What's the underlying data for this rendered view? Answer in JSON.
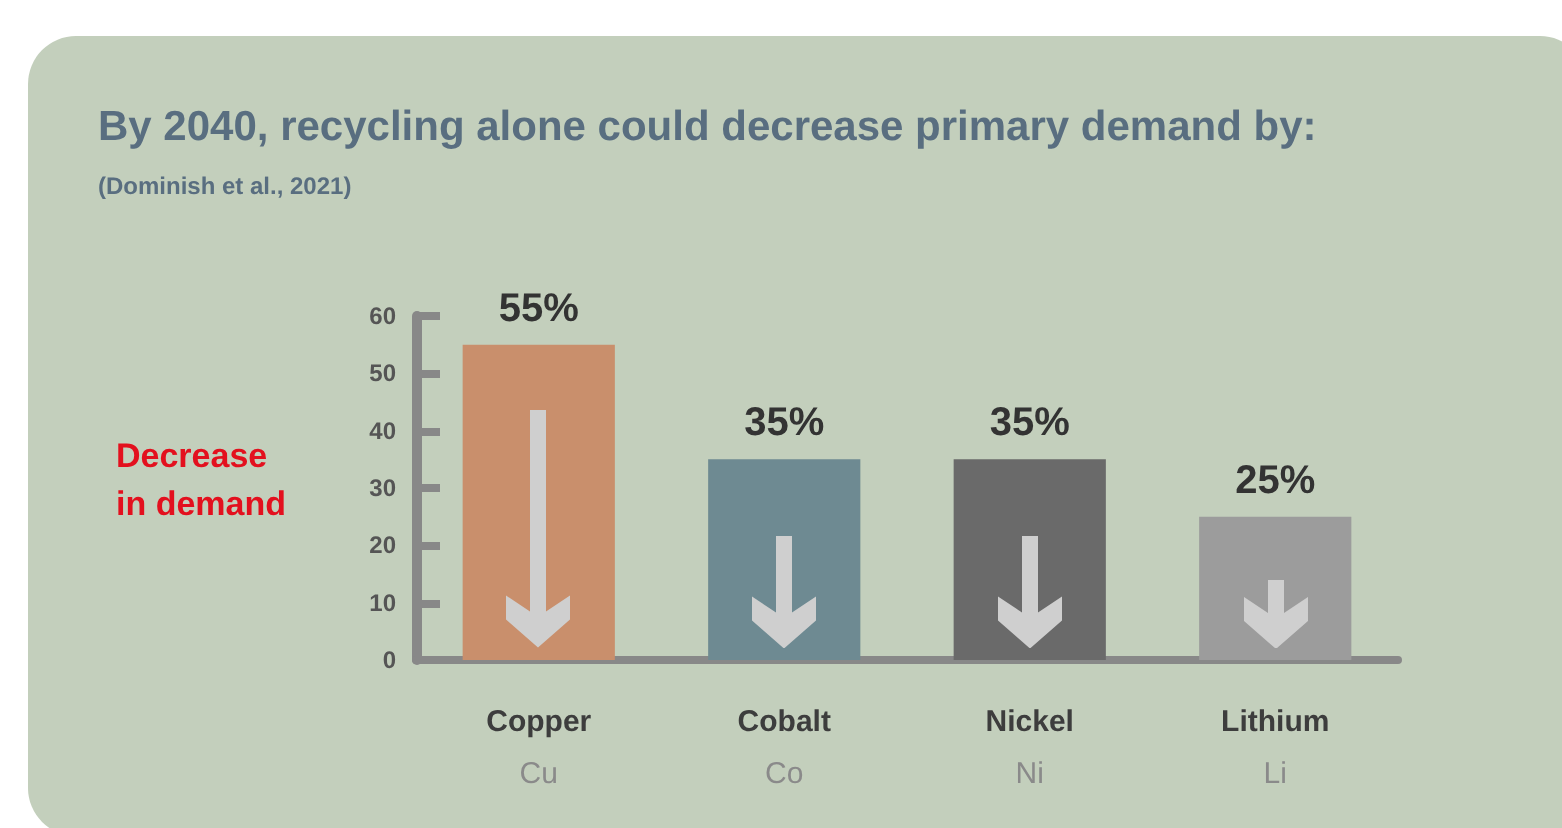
{
  "chart_data": {
    "type": "bar",
    "title": "By 2040, recycling alone could decrease primary demand by:",
    "subtitle": "(Dominish et al., 2021)",
    "ylabel": "Decrease in demand",
    "categories": [
      "Copper\nCu",
      "Cobalt\nCo",
      "Nickel\nNi",
      "Lithium\nLi"
    ],
    "values": [
      55,
      35,
      35,
      25
    ],
    "colors": [
      "#c98f6c",
      "#6e8a92",
      "#6a6a6a",
      "#9c9c9c"
    ],
    "value_labels": [
      "55%",
      "35%",
      "35%",
      "25%"
    ],
    "ylim": [
      0,
      60
    ],
    "yticks": [
      0,
      10,
      20,
      30,
      40,
      50,
      60
    ],
    "grid": false
  }
}
